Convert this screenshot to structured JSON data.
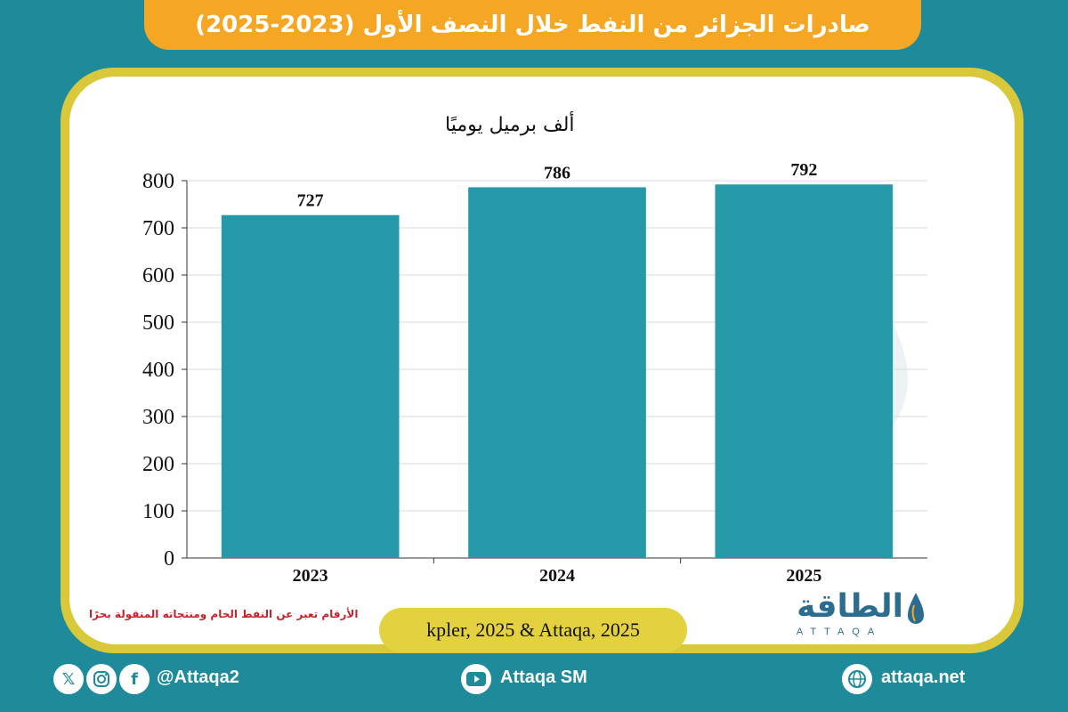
{
  "header": {
    "title": "صادرات الجزائر من النفط خلال النصف الأول (2023-2025)"
  },
  "chart_data": {
    "type": "bar",
    "title": "صادرات الجزائر من النفط خلال النصف الأول (2023-2025)",
    "ylabel": "ألف برميل يوميًا",
    "xlabel": "",
    "categories": [
      "2023",
      "2024",
      "2025"
    ],
    "values": [
      727,
      786,
      792
    ],
    "data_labels": [
      "727",
      "786",
      "792"
    ],
    "ylim": [
      0,
      800
    ],
    "yticks": [
      0,
      100,
      200,
      300,
      400,
      500,
      600,
      700,
      800
    ],
    "grid": true,
    "bar_color": "#2599a8",
    "grid_color": "#d8d8d8"
  },
  "note": "الأرقام تعبر عن النفط الخام ومنتجاته المنقولة بحرًا",
  "source": "kpler, 2025 & Attaqa, 2025",
  "logo": {
    "arabic": "الطاقة",
    "latin": "ATTAQA"
  },
  "footer": {
    "social_handle": "@Attaqa2",
    "youtube": "Attaqa SM",
    "website": "attaqa.net",
    "icons": [
      "x-icon",
      "instagram-icon",
      "facebook-icon",
      "youtube-icon",
      "globe-icon"
    ]
  },
  "colors": {
    "background": "#1f8b9a",
    "title_bar": "#f5a623",
    "card_border": "#d9c83a",
    "source_pill": "#e3d13f",
    "note": "#c0272d"
  }
}
